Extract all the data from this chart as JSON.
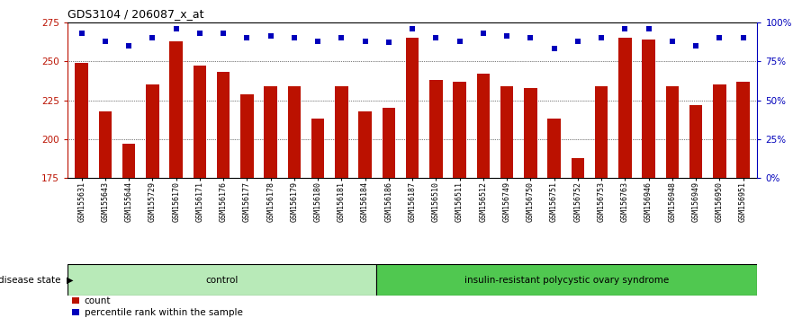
{
  "title": "GDS3104 / 206087_x_at",
  "samples": [
    "GSM155631",
    "GSM155643",
    "GSM155644",
    "GSM155729",
    "GSM156170",
    "GSM156171",
    "GSM156176",
    "GSM156177",
    "GSM156178",
    "GSM156179",
    "GSM156180",
    "GSM156181",
    "GSM156184",
    "GSM156186",
    "GSM156187",
    "GSM156510",
    "GSM156511",
    "GSM156512",
    "GSM156749",
    "GSM156750",
    "GSM156751",
    "GSM156752",
    "GSM156753",
    "GSM156763",
    "GSM156946",
    "GSM156948",
    "GSM156949",
    "GSM156950",
    "GSM156951"
  ],
  "bar_values": [
    249,
    218,
    197,
    235,
    263,
    247,
    243,
    229,
    234,
    234,
    213,
    234,
    218,
    220,
    265,
    238,
    237,
    242,
    234,
    233,
    213,
    188,
    234,
    265,
    264,
    234,
    222,
    235,
    237
  ],
  "percentile_values": [
    93,
    88,
    85,
    90,
    96,
    93,
    93,
    90,
    91,
    90,
    88,
    90,
    88,
    87,
    96,
    90,
    88,
    93,
    91,
    90,
    83,
    88,
    90,
    96,
    96,
    88,
    85,
    90,
    90
  ],
  "group_labels": [
    "control",
    "insulin-resistant polycystic ovary syndrome"
  ],
  "group_sizes": [
    13,
    16
  ],
  "group_colors_light": [
    "#c8f0c8",
    "#90EE90"
  ],
  "group_colors": [
    "#b0e8b0",
    "#50c850"
  ],
  "bar_color": "#BB1100",
  "dot_color": "#0000BB",
  "bar_bottom": 175,
  "ylim_left": [
    175,
    275
  ],
  "ylim_right": [
    0,
    100
  ],
  "yticks_left": [
    175,
    200,
    225,
    250,
    275
  ],
  "yticks_right": [
    0,
    25,
    50,
    75,
    100
  ],
  "ytick_labels_right": [
    "0%",
    "25%",
    "50%",
    "75%",
    "100%"
  ],
  "grid_values": [
    200,
    225,
    250
  ],
  "legend_items": [
    "count",
    "percentile rank within the sample"
  ],
  "disease_state_label": "disease state"
}
